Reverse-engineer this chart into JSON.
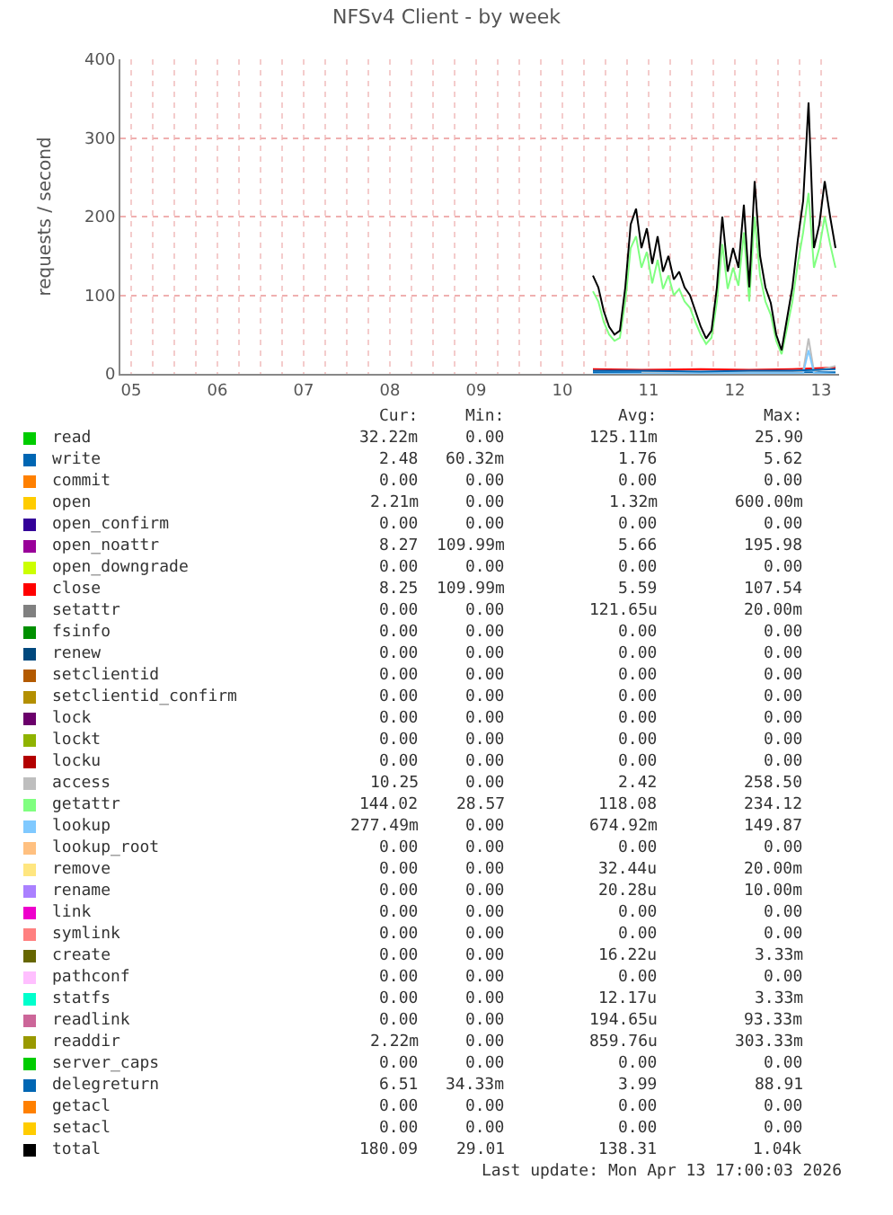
{
  "chart_data": {
    "type": "line",
    "title": "NFSv4 Client - by week",
    "ylabel": "requests / second",
    "xlim": [
      "2026-04-05T09:00",
      "2026-04-13T17:00"
    ],
    "xticks": [
      {
        "value": "2026-04-05T12:00",
        "label": "05"
      },
      {
        "value": "2026-04-05T18:00",
        "label": null
      },
      {
        "value": "2026-04-06T00:00",
        "label": null
      },
      {
        "value": "2026-04-06T06:00",
        "label": null
      },
      {
        "value": "2026-04-06T12:00",
        "label": "06"
      },
      {
        "value": "2026-04-06T18:00",
        "label": null
      },
      {
        "value": "2026-04-07T00:00",
        "label": null
      },
      {
        "value": "2026-04-07T06:00",
        "label": null
      },
      {
        "value": "2026-04-07T12:00",
        "label": "07"
      },
      {
        "value": "2026-04-07T18:00",
        "label": null
      },
      {
        "value": "2026-04-08T00:00",
        "label": null
      },
      {
        "value": "2026-04-08T06:00",
        "label": null
      },
      {
        "value": "2026-04-08T12:00",
        "label": "08"
      },
      {
        "value": "2026-04-08T18:00",
        "label": null
      },
      {
        "value": "2026-04-09T00:00",
        "label": null
      },
      {
        "value": "2026-04-09T06:00",
        "label": null
      },
      {
        "value": "2026-04-09T12:00",
        "label": "09"
      },
      {
        "value": "2026-04-09T18:00",
        "label": null
      },
      {
        "value": "2026-04-10T00:00",
        "label": null
      },
      {
        "value": "2026-04-10T06:00",
        "label": null
      },
      {
        "value": "2026-04-10T12:00",
        "label": "10"
      },
      {
        "value": "2026-04-10T18:00",
        "label": null
      },
      {
        "value": "2026-04-11T00:00",
        "label": null
      },
      {
        "value": "2026-04-11T06:00",
        "label": null
      },
      {
        "value": "2026-04-11T12:00",
        "label": "11"
      },
      {
        "value": "2026-04-11T18:00",
        "label": null
      },
      {
        "value": "2026-04-12T00:00",
        "label": null
      },
      {
        "value": "2026-04-12T06:00",
        "label": null
      },
      {
        "value": "2026-04-12T12:00",
        "label": "12"
      },
      {
        "value": "2026-04-12T18:00",
        "label": null
      },
      {
        "value": "2026-04-13T00:00",
        "label": null
      },
      {
        "value": "2026-04-13T06:00",
        "label": null
      },
      {
        "value": "2026-04-13T12:00",
        "label": "13"
      }
    ],
    "ylim": [
      0,
      400
    ],
    "yticks": [
      0,
      100,
      200,
      300,
      400
    ],
    "grid": true,
    "legend": "bottom",
    "x": [
      "2026-04-10T20:30",
      "2026-04-10T22:00",
      "2026-04-10T23:30",
      "2026-04-11T01:00",
      "2026-04-11T02:30",
      "2026-04-11T04:00",
      "2026-04-11T05:30",
      "2026-04-11T07:00",
      "2026-04-11T08:30",
      "2026-04-11T10:00",
      "2026-04-11T11:30",
      "2026-04-11T13:00",
      "2026-04-11T14:30",
      "2026-04-11T16:00",
      "2026-04-11T17:30",
      "2026-04-11T19:00",
      "2026-04-11T20:30",
      "2026-04-11T22:00",
      "2026-04-11T23:30",
      "2026-04-12T01:00",
      "2026-04-12T02:30",
      "2026-04-12T04:00",
      "2026-04-12T05:30",
      "2026-04-12T07:00",
      "2026-04-12T08:30",
      "2026-04-12T10:00",
      "2026-04-12T11:30",
      "2026-04-12T13:00",
      "2026-04-12T14:30",
      "2026-04-12T16:00",
      "2026-04-12T17:30",
      "2026-04-12T19:00",
      "2026-04-12T20:30",
      "2026-04-12T22:00",
      "2026-04-12T23:30",
      "2026-04-13T01:00",
      "2026-04-13T02:30",
      "2026-04-13T04:00",
      "2026-04-13T05:30",
      "2026-04-13T07:00",
      "2026-04-13T08:30",
      "2026-04-13T10:00",
      "2026-04-13T11:30",
      "2026-04-13T13:00",
      "2026-04-13T14:30",
      "2026-04-13T16:00"
    ],
    "series": [
      {
        "name": "read",
        "color": "#00cc00",
        "values": [
          null,
          null,
          null,
          null,
          null,
          null,
          null,
          null,
          null,
          null,
          null,
          null,
          null,
          null,
          null,
          null,
          null,
          null,
          null,
          null,
          null,
          null,
          null,
          null,
          null,
          null,
          null,
          null,
          null,
          null,
          null,
          null,
          null,
          null,
          null,
          null,
          null,
          null,
          null,
          null,
          null,
          null,
          null,
          null,
          null,
          null
        ]
      },
      {
        "name": "write",
        "color": "#0066b3",
        "x": [
          "2026-04-10T20:30",
          "2026-04-13T16:00"
        ],
        "values": [
          2,
          2
        ]
      },
      {
        "name": "commit",
        "color": "#ff8000",
        "values": [
          null,
          null,
          null,
          null,
          null,
          null,
          null,
          null,
          null,
          null,
          null,
          null,
          null,
          null,
          null,
          null,
          null,
          null,
          null,
          null,
          null,
          null,
          null,
          null,
          null,
          null,
          null,
          null,
          null,
          null,
          null,
          null,
          null,
          null,
          null,
          null,
          null,
          null,
          null,
          null,
          null,
          null,
          null,
          null,
          null,
          null
        ]
      },
      {
        "name": "open",
        "color": "#ffcc00",
        "values": [
          null,
          null,
          null,
          null,
          null,
          null,
          null,
          null,
          null,
          null,
          null,
          null,
          null,
          null,
          null,
          null,
          null,
          null,
          null,
          null,
          null,
          null,
          null,
          null,
          null,
          null,
          null,
          null,
          null,
          null,
          null,
          null,
          null,
          null,
          null,
          null,
          null,
          null,
          null,
          null,
          null,
          null,
          null,
          null,
          null,
          null
        ]
      },
      {
        "name": "open_confirm",
        "color": "#330099",
        "values": [
          null,
          null,
          null,
          null,
          null,
          null,
          null,
          null,
          null,
          null,
          null,
          null,
          null,
          null,
          null,
          null,
          null,
          null,
          null,
          null,
          null,
          null,
          null,
          null,
          null,
          null,
          null,
          null,
          null,
          null,
          null,
          null,
          null,
          null,
          null,
          null,
          null,
          null,
          null,
          null,
          null,
          null,
          null,
          null,
          null,
          null
        ]
      },
      {
        "name": "open_noattr",
        "color": "#990099",
        "values": [
          null,
          null,
          null,
          null,
          null,
          null,
          null,
          null,
          null,
          null,
          null,
          null,
          null,
          null,
          null,
          null,
          null,
          null,
          null,
          null,
          null,
          null,
          null,
          null,
          null,
          null,
          null,
          null,
          null,
          null,
          null,
          null,
          null,
          null,
          null,
          null,
          null,
          null,
          null,
          null,
          null,
          null,
          null,
          null,
          null,
          null
        ]
      },
      {
        "name": "open_downgrade",
        "color": "#ccff00",
        "values": [
          null,
          null,
          null,
          null,
          null,
          null,
          null,
          null,
          null,
          null,
          null,
          null,
          null,
          null,
          null,
          null,
          null,
          null,
          null,
          null,
          null,
          null,
          null,
          null,
          null,
          null,
          null,
          null,
          null,
          null,
          null,
          null,
          null,
          null,
          null,
          null,
          null,
          null,
          null,
          null,
          null,
          null,
          null,
          null,
          null,
          null
        ]
      },
      {
        "name": "close",
        "color": "#ff0000",
        "x": [
          "2026-04-10T20:30",
          "2026-04-11T10:00",
          "2026-04-12T02:30",
          "2026-04-12T16:00",
          "2026-04-13T04:00",
          "2026-04-13T16:00"
        ],
        "values": [
          6,
          5,
          6,
          5,
          6,
          8
        ]
      },
      {
        "name": "setattr",
        "color": "#808080",
        "values": [
          null,
          null,
          null,
          null,
          null,
          null,
          null,
          null,
          null,
          null,
          null,
          null,
          null,
          null,
          null,
          null,
          null,
          null,
          null,
          null,
          null,
          null,
          null,
          null,
          null,
          null,
          null,
          null,
          null,
          null,
          null,
          null,
          null,
          null,
          null,
          null,
          null,
          null,
          null,
          null,
          null,
          null,
          null,
          null,
          null,
          null
        ]
      },
      {
        "name": "fsinfo",
        "color": "#008f00",
        "values": [
          null,
          null,
          null,
          null,
          null,
          null,
          null,
          null,
          null,
          null,
          null,
          null,
          null,
          null,
          null,
          null,
          null,
          null,
          null,
          null,
          null,
          null,
          null,
          null,
          null,
          null,
          null,
          null,
          null,
          null,
          null,
          null,
          null,
          null,
          null,
          null,
          null,
          null,
          null,
          null,
          null,
          null,
          null,
          null,
          null,
          null
        ]
      },
      {
        "name": "renew",
        "color": "#00487d",
        "values": [
          null,
          null,
          null,
          null,
          null,
          null,
          null,
          null,
          null,
          null,
          null,
          null,
          null,
          null,
          null,
          null,
          null,
          null,
          null,
          null,
          null,
          null,
          null,
          null,
          null,
          null,
          null,
          null,
          null,
          null,
          null,
          null,
          null,
          null,
          null,
          null,
          null,
          null,
          null,
          null,
          null,
          null,
          null,
          null,
          null,
          null
        ]
      },
      {
        "name": "setclientid",
        "color": "#b35a00",
        "values": [
          null,
          null,
          null,
          null,
          null,
          null,
          null,
          null,
          null,
          null,
          null,
          null,
          null,
          null,
          null,
          null,
          null,
          null,
          null,
          null,
          null,
          null,
          null,
          null,
          null,
          null,
          null,
          null,
          null,
          null,
          null,
          null,
          null,
          null,
          null,
          null,
          null,
          null,
          null,
          null,
          null,
          null,
          null,
          null,
          null,
          null
        ]
      },
      {
        "name": "setclientid_confirm",
        "color": "#b38f00",
        "values": [
          null,
          null,
          null,
          null,
          null,
          null,
          null,
          null,
          null,
          null,
          null,
          null,
          null,
          null,
          null,
          null,
          null,
          null,
          null,
          null,
          null,
          null,
          null,
          null,
          null,
          null,
          null,
          null,
          null,
          null,
          null,
          null,
          null,
          null,
          null,
          null,
          null,
          null,
          null,
          null,
          null,
          null,
          null,
          null,
          null,
          null
        ]
      },
      {
        "name": "lock",
        "color": "#6b006b",
        "values": [
          null,
          null,
          null,
          null,
          null,
          null,
          null,
          null,
          null,
          null,
          null,
          null,
          null,
          null,
          null,
          null,
          null,
          null,
          null,
          null,
          null,
          null,
          null,
          null,
          null,
          null,
          null,
          null,
          null,
          null,
          null,
          null,
          null,
          null,
          null,
          null,
          null,
          null,
          null,
          null,
          null,
          null,
          null,
          null,
          null,
          null
        ]
      },
      {
        "name": "lockt",
        "color": "#8fb300",
        "values": [
          null,
          null,
          null,
          null,
          null,
          null,
          null,
          null,
          null,
          null,
          null,
          null,
          null,
          null,
          null,
          null,
          null,
          null,
          null,
          null,
          null,
          null,
          null,
          null,
          null,
          null,
          null,
          null,
          null,
          null,
          null,
          null,
          null,
          null,
          null,
          null,
          null,
          null,
          null,
          null,
          null,
          null,
          null,
          null,
          null,
          null
        ]
      },
      {
        "name": "locku",
        "color": "#b30000",
        "values": [
          null,
          null,
          null,
          null,
          null,
          null,
          null,
          null,
          null,
          null,
          null,
          null,
          null,
          null,
          null,
          null,
          null,
          null,
          null,
          null,
          null,
          null,
          null,
          null,
          null,
          null,
          null,
          null,
          null,
          null,
          null,
          null,
          null,
          null,
          null,
          null,
          null,
          null,
          null,
          null,
          null,
          null,
          null,
          null,
          null,
          null
        ]
      },
      {
        "name": "access",
        "color": "#bebebe",
        "x": [
          "2026-04-11T10:00",
          "2026-04-13T07:00",
          "2026-04-13T08:30",
          "2026-04-13T10:00",
          "2026-04-13T16:00"
        ],
        "values": [
          2,
          3,
          45,
          3,
          10
        ]
      },
      {
        "name": "getattr",
        "color": "#80ff80",
        "values": [
          105,
          92,
          66,
          50,
          42,
          46,
          92,
          160,
          175,
          135,
          155,
          115,
          145,
          108,
          125,
          100,
          108,
          92,
          84,
          66,
          50,
          38,
          46,
          92,
          165,
          108,
          135,
          112,
          180,
          92,
          200,
          125,
          92,
          75,
          42,
          25,
          58,
          92,
          140,
          180,
          230,
          135,
          160,
          200,
          165,
          135
        ]
      },
      {
        "name": "lookup",
        "color": "#80c9ff",
        "x": [
          "2026-04-10T20:30",
          "2026-04-13T07:00",
          "2026-04-13T08:30",
          "2026-04-13T10:00",
          "2026-04-13T16:00"
        ],
        "values": [
          0,
          1,
          30,
          1,
          0
        ]
      },
      {
        "name": "lookup_root",
        "color": "#ffc080",
        "values": [
          null,
          null,
          null,
          null,
          null,
          null,
          null,
          null,
          null,
          null,
          null,
          null,
          null,
          null,
          null,
          null,
          null,
          null,
          null,
          null,
          null,
          null,
          null,
          null,
          null,
          null,
          null,
          null,
          null,
          null,
          null,
          null,
          null,
          null,
          null,
          null,
          null,
          null,
          null,
          null,
          null,
          null,
          null,
          null,
          null,
          null
        ]
      },
      {
        "name": "remove",
        "color": "#ffe680",
        "values": [
          null,
          null,
          null,
          null,
          null,
          null,
          null,
          null,
          null,
          null,
          null,
          null,
          null,
          null,
          null,
          null,
          null,
          null,
          null,
          null,
          null,
          null,
          null,
          null,
          null,
          null,
          null,
          null,
          null,
          null,
          null,
          null,
          null,
          null,
          null,
          null,
          null,
          null,
          null,
          null,
          null,
          null,
          null,
          null,
          null,
          null
        ]
      },
      {
        "name": "rename",
        "color": "#aa80ff",
        "values": [
          null,
          null,
          null,
          null,
          null,
          null,
          null,
          null,
          null,
          null,
          null,
          null,
          null,
          null,
          null,
          null,
          null,
          null,
          null,
          null,
          null,
          null,
          null,
          null,
          null,
          null,
          null,
          null,
          null,
          null,
          null,
          null,
          null,
          null,
          null,
          null,
          null,
          null,
          null,
          null,
          null,
          null,
          null,
          null,
          null,
          null
        ]
      },
      {
        "name": "link",
        "color": "#ee00cc",
        "values": [
          null,
          null,
          null,
          null,
          null,
          null,
          null,
          null,
          null,
          null,
          null,
          null,
          null,
          null,
          null,
          null,
          null,
          null,
          null,
          null,
          null,
          null,
          null,
          null,
          null,
          null,
          null,
          null,
          null,
          null,
          null,
          null,
          null,
          null,
          null,
          null,
          null,
          null,
          null,
          null,
          null,
          null,
          null,
          null,
          null,
          null
        ]
      },
      {
        "name": "symlink",
        "color": "#ff8080",
        "values": [
          null,
          null,
          null,
          null,
          null,
          null,
          null,
          null,
          null,
          null,
          null,
          null,
          null,
          null,
          null,
          null,
          null,
          null,
          null,
          null,
          null,
          null,
          null,
          null,
          null,
          null,
          null,
          null,
          null,
          null,
          null,
          null,
          null,
          null,
          null,
          null,
          null,
          null,
          null,
          null,
          null,
          null,
          null,
          null,
          null,
          null
        ]
      },
      {
        "name": "create",
        "color": "#666600",
        "values": [
          null,
          null,
          null,
          null,
          null,
          null,
          null,
          null,
          null,
          null,
          null,
          null,
          null,
          null,
          null,
          null,
          null,
          null,
          null,
          null,
          null,
          null,
          null,
          null,
          null,
          null,
          null,
          null,
          null,
          null,
          null,
          null,
          null,
          null,
          null,
          null,
          null,
          null,
          null,
          null,
          null,
          null,
          null,
          null,
          null,
          null
        ]
      },
      {
        "name": "pathconf",
        "color": "#ffbfff",
        "values": [
          null,
          null,
          null,
          null,
          null,
          null,
          null,
          null,
          null,
          null,
          null,
          null,
          null,
          null,
          null,
          null,
          null,
          null,
          null,
          null,
          null,
          null,
          null,
          null,
          null,
          null,
          null,
          null,
          null,
          null,
          null,
          null,
          null,
          null,
          null,
          null,
          null,
          null,
          null,
          null,
          null,
          null,
          null,
          null,
          null,
          null
        ]
      },
      {
        "name": "statfs",
        "color": "#00ffcc",
        "values": [
          null,
          null,
          null,
          null,
          null,
          null,
          null,
          null,
          null,
          null,
          null,
          null,
          null,
          null,
          null,
          null,
          null,
          null,
          null,
          null,
          null,
          null,
          null,
          null,
          null,
          null,
          null,
          null,
          null,
          null,
          null,
          null,
          null,
          null,
          null,
          null,
          null,
          null,
          null,
          null,
          null,
          null,
          null,
          null,
          null,
          null
        ]
      },
      {
        "name": "readlink",
        "color": "#cc6699",
        "values": [
          null,
          null,
          null,
          null,
          null,
          null,
          null,
          null,
          null,
          null,
          null,
          null,
          null,
          null,
          null,
          null,
          null,
          null,
          null,
          null,
          null,
          null,
          null,
          null,
          null,
          null,
          null,
          null,
          null,
          null,
          null,
          null,
          null,
          null,
          null,
          null,
          null,
          null,
          null,
          null,
          null,
          null,
          null,
          null,
          null,
          null
        ]
      },
      {
        "name": "readdir",
        "color": "#999900",
        "values": [
          null,
          null,
          null,
          null,
          null,
          null,
          null,
          null,
          null,
          null,
          null,
          null,
          null,
          null,
          null,
          null,
          null,
          null,
          null,
          null,
          null,
          null,
          null,
          null,
          null,
          null,
          null,
          null,
          null,
          null,
          null,
          null,
          null,
          null,
          null,
          null,
          null,
          null,
          null,
          null,
          null,
          null,
          null,
          null,
          null,
          null
        ]
      },
      {
        "name": "server_caps",
        "color": "#00cc00",
        "values": [
          null,
          null,
          null,
          null,
          null,
          null,
          null,
          null,
          null,
          null,
          null,
          null,
          null,
          null,
          null,
          null,
          null,
          null,
          null,
          null,
          null,
          null,
          null,
          null,
          null,
          null,
          null,
          null,
          null,
          null,
          null,
          null,
          null,
          null,
          null,
          null,
          null,
          null,
          null,
          null,
          null,
          null,
          null,
          null,
          null,
          null
        ]
      },
      {
        "name": "delegreturn",
        "color": "#0066b3",
        "x": [
          "2026-04-10T20:30",
          "2026-04-11T10:00",
          "2026-04-12T02:30",
          "2026-04-12T16:00",
          "2026-04-13T04:00",
          "2026-04-13T16:00"
        ],
        "values": [
          4,
          4,
          3,
          4,
          4,
          6
        ]
      },
      {
        "name": "getacl",
        "color": "#ff8000",
        "values": [
          null,
          null,
          null,
          null,
          null,
          null,
          null,
          null,
          null,
          null,
          null,
          null,
          null,
          null,
          null,
          null,
          null,
          null,
          null,
          null,
          null,
          null,
          null,
          null,
          null,
          null,
          null,
          null,
          null,
          null,
          null,
          null,
          null,
          null,
          null,
          null,
          null,
          null,
          null,
          null,
          null,
          null,
          null,
          null,
          null,
          null
        ]
      },
      {
        "name": "setacl",
        "color": "#ffcc00",
        "values": [
          null,
          null,
          null,
          null,
          null,
          null,
          null,
          null,
          null,
          null,
          null,
          null,
          null,
          null,
          null,
          null,
          null,
          null,
          null,
          null,
          null,
          null,
          null,
          null,
          null,
          null,
          null,
          null,
          null,
          null,
          null,
          null,
          null,
          null,
          null,
          null,
          null,
          null,
          null,
          null,
          null,
          null,
          null,
          null,
          null,
          null
        ]
      },
      {
        "name": "total",
        "color": "#000000",
        "values": [
          125,
          110,
          80,
          60,
          50,
          55,
          110,
          190,
          210,
          160,
          185,
          140,
          175,
          130,
          150,
          120,
          130,
          110,
          100,
          80,
          60,
          45,
          55,
          110,
          200,
          130,
          160,
          135,
          215,
          110,
          245,
          150,
          110,
          90,
          50,
          30,
          70,
          110,
          170,
          220,
          345,
          160,
          190,
          245,
          200,
          160
        ]
      }
    ],
    "annotations": [
      "Cur:",
      "Min:",
      "Avg:",
      "Max:",
      "32.22m",
      "0.00",
      "125.11m",
      "25.90",
      "2.48",
      "60.32m",
      "1.76",
      "5.62",
      "0.00",
      "0.00",
      "0.00",
      "0.00",
      "2.21m",
      "0.00",
      "1.32m",
      "600.00m",
      "0.00",
      "0.00",
      "0.00",
      "0.00",
      "8.27",
      "109.99m",
      "5.66",
      "195.98",
      "0.00",
      "0.00",
      "0.00",
      "0.00",
      "8.25",
      "109.99m",
      "5.59",
      "107.54",
      "0.00",
      "0.00",
      "121.65u",
      "20.00m",
      "0.00",
      "0.00",
      "0.00",
      "0.00",
      "0.00",
      "0.00",
      "0.00",
      "0.00",
      "0.00",
      "0.00",
      "0.00",
      "0.00",
      "0.00",
      "0.00",
      "0.00",
      "0.00",
      "0.00",
      "0.00",
      "0.00",
      "0.00",
      "0.00",
      "0.00",
      "0.00",
      "0.00",
      "0.00",
      "0.00",
      "0.00",
      "0.00",
      "10.25",
      "0.00",
      "2.42",
      "258.50",
      "144.02",
      "28.57",
      "118.08",
      "234.12",
      "277.49m",
      "0.00",
      "674.92m",
      "149.87",
      "0.00",
      "0.00",
      "0.00",
      "0.00",
      "0.00",
      "0.00",
      "32.44u",
      "20.00m",
      "0.00",
      "0.00",
      "20.28u",
      "10.00m",
      "0.00",
      "0.00",
      "0.00",
      "0.00",
      "0.00",
      "0.00",
      "0.00",
      "0.00",
      "0.00",
      "0.00",
      "16.22u",
      "3.33m",
      "0.00",
      "0.00",
      "0.00",
      "0.00",
      "0.00",
      "0.00",
      "12.17u",
      "3.33m",
      "0.00",
      "0.00",
      "194.65u",
      "93.33m",
      "2.22m",
      "0.00",
      "859.76u",
      "303.33m",
      "0.00",
      "0.00",
      "0.00",
      "0.00",
      "6.51",
      "34.33m",
      "3.99",
      "88.91",
      "0.00",
      "0.00",
      "0.00",
      "0.00",
      "0.00",
      "0.00",
      "0.00",
      "0.00",
      "180.09",
      "29.01",
      "138.31",
      "1.04k",
      "Last update: Mon Apr 13 17:00:03 2026"
    ]
  }
}
